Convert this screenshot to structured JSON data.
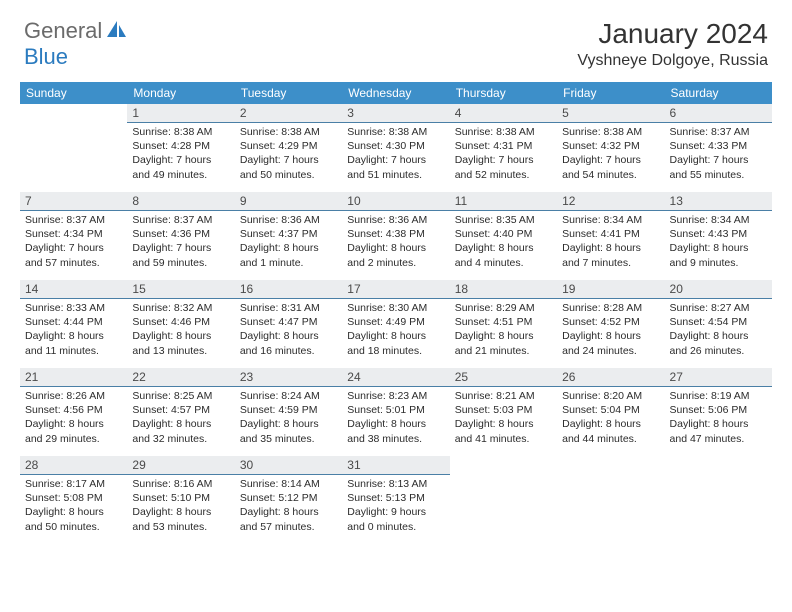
{
  "logo": {
    "part1": "General",
    "part2": "Blue"
  },
  "title": "January 2024",
  "location": "Vyshneye Dolgoye, Russia",
  "colors": {
    "header_bg": "#3d8fc9",
    "daynum_bg": "#ebedef",
    "daynum_border": "#4a7fa6",
    "text": "#2c2c2c",
    "logo_gray": "#6b6b6b",
    "logo_blue": "#2b7bbf"
  },
  "weekdays": [
    "Sunday",
    "Monday",
    "Tuesday",
    "Wednesday",
    "Thursday",
    "Friday",
    "Saturday"
  ],
  "weeks": [
    [
      {
        "day": "",
        "lines": []
      },
      {
        "day": "1",
        "lines": [
          "Sunrise: 8:38 AM",
          "Sunset: 4:28 PM",
          "Daylight: 7 hours",
          "and 49 minutes."
        ]
      },
      {
        "day": "2",
        "lines": [
          "Sunrise: 8:38 AM",
          "Sunset: 4:29 PM",
          "Daylight: 7 hours",
          "and 50 minutes."
        ]
      },
      {
        "day": "3",
        "lines": [
          "Sunrise: 8:38 AM",
          "Sunset: 4:30 PM",
          "Daylight: 7 hours",
          "and 51 minutes."
        ]
      },
      {
        "day": "4",
        "lines": [
          "Sunrise: 8:38 AM",
          "Sunset: 4:31 PM",
          "Daylight: 7 hours",
          "and 52 minutes."
        ]
      },
      {
        "day": "5",
        "lines": [
          "Sunrise: 8:38 AM",
          "Sunset: 4:32 PM",
          "Daylight: 7 hours",
          "and 54 minutes."
        ]
      },
      {
        "day": "6",
        "lines": [
          "Sunrise: 8:37 AM",
          "Sunset: 4:33 PM",
          "Daylight: 7 hours",
          "and 55 minutes."
        ]
      }
    ],
    [
      {
        "day": "7",
        "lines": [
          "Sunrise: 8:37 AM",
          "Sunset: 4:34 PM",
          "Daylight: 7 hours",
          "and 57 minutes."
        ]
      },
      {
        "day": "8",
        "lines": [
          "Sunrise: 8:37 AM",
          "Sunset: 4:36 PM",
          "Daylight: 7 hours",
          "and 59 minutes."
        ]
      },
      {
        "day": "9",
        "lines": [
          "Sunrise: 8:36 AM",
          "Sunset: 4:37 PM",
          "Daylight: 8 hours",
          "and 1 minute."
        ]
      },
      {
        "day": "10",
        "lines": [
          "Sunrise: 8:36 AM",
          "Sunset: 4:38 PM",
          "Daylight: 8 hours",
          "and 2 minutes."
        ]
      },
      {
        "day": "11",
        "lines": [
          "Sunrise: 8:35 AM",
          "Sunset: 4:40 PM",
          "Daylight: 8 hours",
          "and 4 minutes."
        ]
      },
      {
        "day": "12",
        "lines": [
          "Sunrise: 8:34 AM",
          "Sunset: 4:41 PM",
          "Daylight: 8 hours",
          "and 7 minutes."
        ]
      },
      {
        "day": "13",
        "lines": [
          "Sunrise: 8:34 AM",
          "Sunset: 4:43 PM",
          "Daylight: 8 hours",
          "and 9 minutes."
        ]
      }
    ],
    [
      {
        "day": "14",
        "lines": [
          "Sunrise: 8:33 AM",
          "Sunset: 4:44 PM",
          "Daylight: 8 hours",
          "and 11 minutes."
        ]
      },
      {
        "day": "15",
        "lines": [
          "Sunrise: 8:32 AM",
          "Sunset: 4:46 PM",
          "Daylight: 8 hours",
          "and 13 minutes."
        ]
      },
      {
        "day": "16",
        "lines": [
          "Sunrise: 8:31 AM",
          "Sunset: 4:47 PM",
          "Daylight: 8 hours",
          "and 16 minutes."
        ]
      },
      {
        "day": "17",
        "lines": [
          "Sunrise: 8:30 AM",
          "Sunset: 4:49 PM",
          "Daylight: 8 hours",
          "and 18 minutes."
        ]
      },
      {
        "day": "18",
        "lines": [
          "Sunrise: 8:29 AM",
          "Sunset: 4:51 PM",
          "Daylight: 8 hours",
          "and 21 minutes."
        ]
      },
      {
        "day": "19",
        "lines": [
          "Sunrise: 8:28 AM",
          "Sunset: 4:52 PM",
          "Daylight: 8 hours",
          "and 24 minutes."
        ]
      },
      {
        "day": "20",
        "lines": [
          "Sunrise: 8:27 AM",
          "Sunset: 4:54 PM",
          "Daylight: 8 hours",
          "and 26 minutes."
        ]
      }
    ],
    [
      {
        "day": "21",
        "lines": [
          "Sunrise: 8:26 AM",
          "Sunset: 4:56 PM",
          "Daylight: 8 hours",
          "and 29 minutes."
        ]
      },
      {
        "day": "22",
        "lines": [
          "Sunrise: 8:25 AM",
          "Sunset: 4:57 PM",
          "Daylight: 8 hours",
          "and 32 minutes."
        ]
      },
      {
        "day": "23",
        "lines": [
          "Sunrise: 8:24 AM",
          "Sunset: 4:59 PM",
          "Daylight: 8 hours",
          "and 35 minutes."
        ]
      },
      {
        "day": "24",
        "lines": [
          "Sunrise: 8:23 AM",
          "Sunset: 5:01 PM",
          "Daylight: 8 hours",
          "and 38 minutes."
        ]
      },
      {
        "day": "25",
        "lines": [
          "Sunrise: 8:21 AM",
          "Sunset: 5:03 PM",
          "Daylight: 8 hours",
          "and 41 minutes."
        ]
      },
      {
        "day": "26",
        "lines": [
          "Sunrise: 8:20 AM",
          "Sunset: 5:04 PM",
          "Daylight: 8 hours",
          "and 44 minutes."
        ]
      },
      {
        "day": "27",
        "lines": [
          "Sunrise: 8:19 AM",
          "Sunset: 5:06 PM",
          "Daylight: 8 hours",
          "and 47 minutes."
        ]
      }
    ],
    [
      {
        "day": "28",
        "lines": [
          "Sunrise: 8:17 AM",
          "Sunset: 5:08 PM",
          "Daylight: 8 hours",
          "and 50 minutes."
        ]
      },
      {
        "day": "29",
        "lines": [
          "Sunrise: 8:16 AM",
          "Sunset: 5:10 PM",
          "Daylight: 8 hours",
          "and 53 minutes."
        ]
      },
      {
        "day": "30",
        "lines": [
          "Sunrise: 8:14 AM",
          "Sunset: 5:12 PM",
          "Daylight: 8 hours",
          "and 57 minutes."
        ]
      },
      {
        "day": "31",
        "lines": [
          "Sunrise: 8:13 AM",
          "Sunset: 5:13 PM",
          "Daylight: 9 hours",
          "and 0 minutes."
        ]
      },
      {
        "day": "",
        "lines": []
      },
      {
        "day": "",
        "lines": []
      },
      {
        "day": "",
        "lines": []
      }
    ]
  ]
}
